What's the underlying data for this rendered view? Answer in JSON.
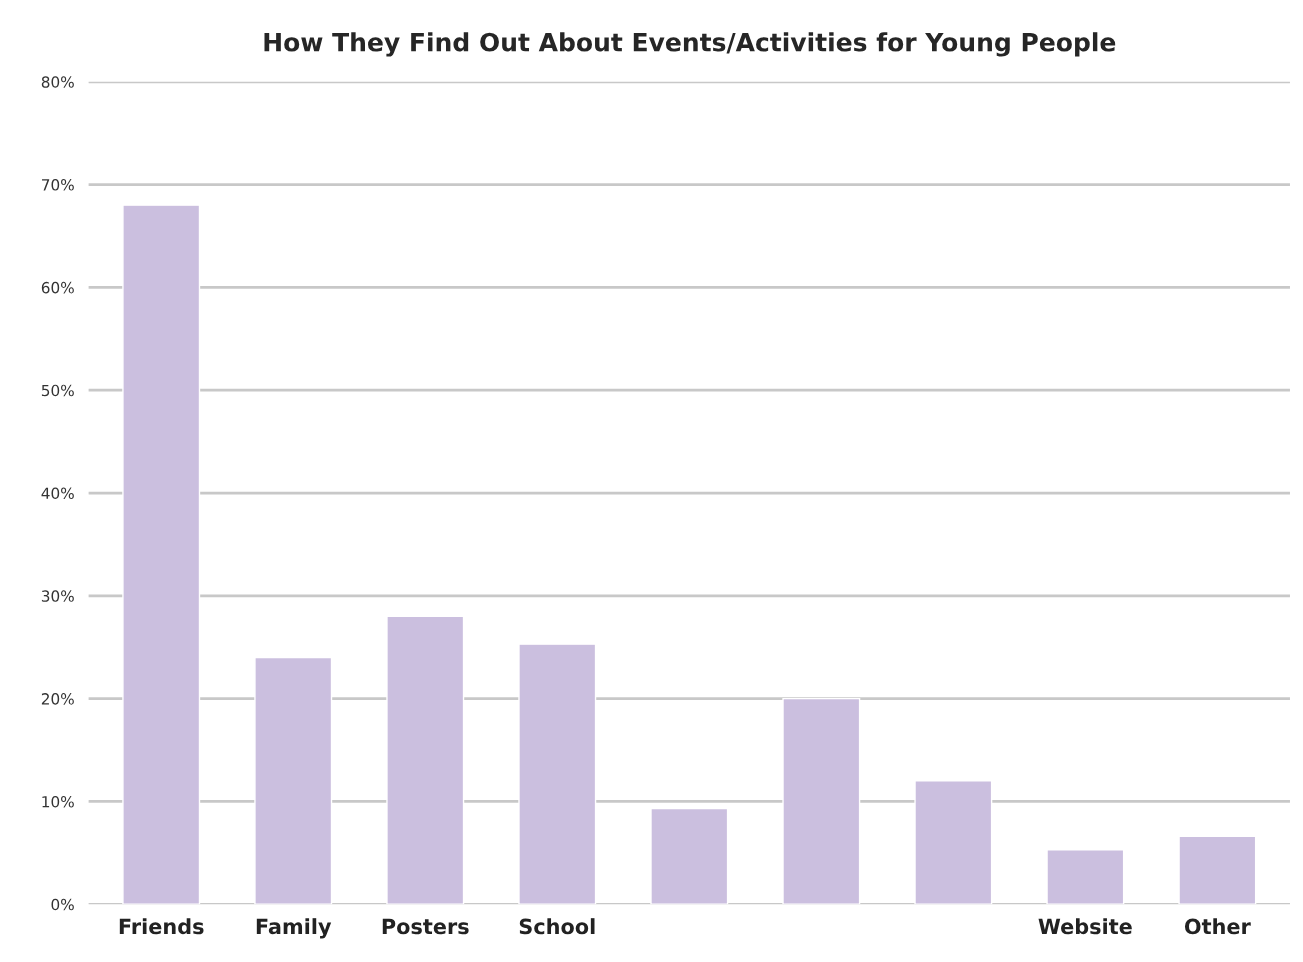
{
  "chart_data": {
    "type": "bar",
    "title": "How They Find Out About Events/Activities for Young People",
    "categories": [
      "Friends",
      "Family",
      "Posters",
      "School",
      null,
      null,
      null,
      "Website",
      "Other"
    ],
    "values": [
      68,
      24,
      28,
      25.3,
      9.3,
      20,
      12,
      5.3,
      6.6
    ],
    "color": "#cbbfdf",
    "ylim": [
      0,
      80
    ],
    "yticks": [
      {
        "value": 0,
        "label": "0%"
      },
      {
        "value": 10,
        "label": "10%"
      },
      {
        "value": 20,
        "label": "20%"
      },
      {
        "value": 30,
        "label": "30%"
      },
      {
        "value": 40,
        "label": "40%"
      },
      {
        "value": 50,
        "label": "50%"
      },
      {
        "value": 60,
        "label": "60%"
      },
      {
        "value": 70,
        "label": "70%"
      },
      {
        "value": 80,
        "label": "80%"
      }
    ],
    "grid": "y",
    "legend": false
  }
}
